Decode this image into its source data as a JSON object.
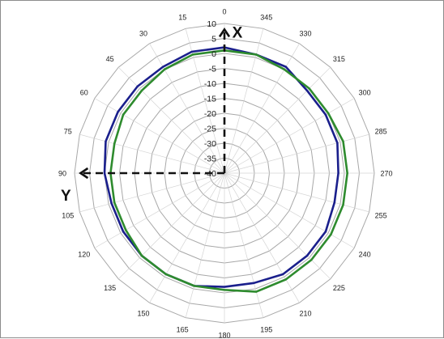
{
  "chart_data": {
    "type": "radar",
    "angle_labels": [
      "0",
      "15",
      "30",
      "45",
      "60",
      "75",
      "90",
      "105",
      "120",
      "135",
      "150",
      "165",
      "180",
      "195",
      "210",
      "225",
      "240",
      "255",
      "270",
      "285",
      "300",
      "315",
      "330",
      "345"
    ],
    "radial_ticks": [
      "10",
      "5",
      "0",
      "-5",
      "-10",
      "-15",
      "-20",
      "-25",
      "-30",
      "-35",
      "-40"
    ],
    "rlim": [
      -40,
      10
    ],
    "grid": true,
    "legend": "none",
    "axis_markers": [
      {
        "label": "X",
        "angle": 0
      },
      {
        "label": "Y",
        "angle": 90
      }
    ],
    "series": [
      {
        "color": "#1a1f8c",
        "values": [
          2,
          2,
          1,
          1,
          1,
          1,
          0,
          -1,
          -1,
          -1,
          -1,
          -1,
          -2,
          -2,
          -1,
          -1,
          -1,
          -2,
          -2,
          -1,
          -1,
          -1,
          1,
          1
        ]
      },
      {
        "color": "#2e8b2e",
        "values": [
          1,
          1,
          0,
          -1,
          -1,
          -2,
          -2,
          -2,
          -2,
          -1,
          -1,
          -1,
          -1,
          1,
          1,
          1,
          1,
          1,
          1,
          1,
          0,
          0,
          0,
          1
        ]
      }
    ]
  }
}
